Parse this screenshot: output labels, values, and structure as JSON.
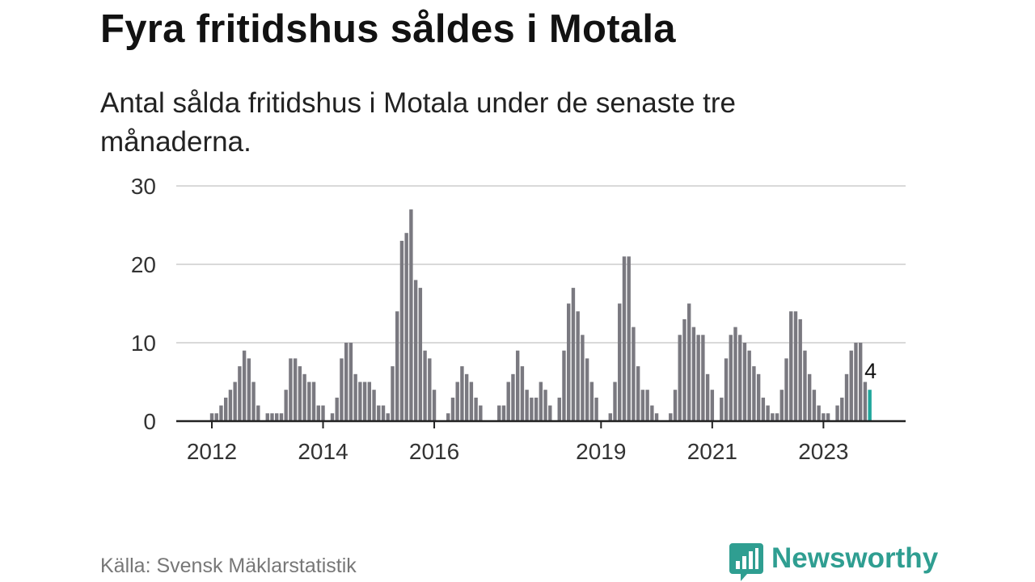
{
  "header": {
    "title": "Fyra fritidshus såldes i Motala",
    "subtitle": "Antal sålda fritidshus i Motala under de senaste tre månaderna."
  },
  "footer": {
    "source": "Källa: Svensk Mäklarstatistik",
    "brand": "Newsworthy",
    "brand_icon": "bar-chart-speech-bubble-icon"
  },
  "colors": {
    "bar": "#7a7980",
    "highlight": "#1fa79c",
    "grid": "#d9d9d9",
    "axis": "#222222",
    "brand": "#2f9e91"
  },
  "chart_data": {
    "type": "bar",
    "title": "Fyra fritidshus såldes i Motala",
    "subtitle": "Antal sålda fritidshus i Motala under de senaste tre månaderna.",
    "ylim": [
      0,
      30
    ],
    "yticks": [
      0,
      10,
      20,
      30
    ],
    "ytick_labels": [
      "0",
      "10",
      "20",
      "30"
    ],
    "xtick_labels": [
      "2012",
      "2014",
      "2016",
      "2019",
      "2021",
      "2023"
    ],
    "xtick_months": [
      0,
      24,
      48,
      84,
      108,
      132
    ],
    "grid": "horizontal",
    "start": "2012-01",
    "frequency": "monthly",
    "values": [
      1,
      1,
      2,
      3,
      4,
      5,
      7,
      9,
      8,
      5,
      2,
      0,
      1,
      1,
      1,
      1,
      4,
      8,
      8,
      7,
      6,
      5,
      5,
      2,
      2,
      0,
      1,
      3,
      8,
      10,
      10,
      6,
      5,
      5,
      5,
      4,
      2,
      2,
      1,
      7,
      14,
      23,
      24,
      27,
      18,
      17,
      9,
      8,
      4,
      0,
      0,
      1,
      3,
      5,
      7,
      6,
      5,
      3,
      2,
      0,
      0,
      0,
      2,
      2,
      5,
      6,
      9,
      7,
      4,
      3,
      3,
      5,
      4,
      2,
      0,
      3,
      9,
      15,
      17,
      14,
      11,
      8,
      5,
      3,
      0,
      0,
      1,
      5,
      15,
      21,
      21,
      12,
      7,
      4,
      4,
      2,
      1,
      0,
      0,
      1,
      4,
      11,
      13,
      15,
      12,
      11,
      11,
      6,
      4,
      0,
      3,
      8,
      11,
      12,
      11,
      10,
      9,
      7,
      6,
      3,
      2,
      1,
      1,
      4,
      8,
      14,
      14,
      13,
      9,
      6,
      4,
      2,
      1,
      1,
      0,
      2,
      3,
      6,
      9,
      10,
      10,
      5,
      4
    ],
    "highlight_label": "4",
    "highlight_index": 142
  }
}
